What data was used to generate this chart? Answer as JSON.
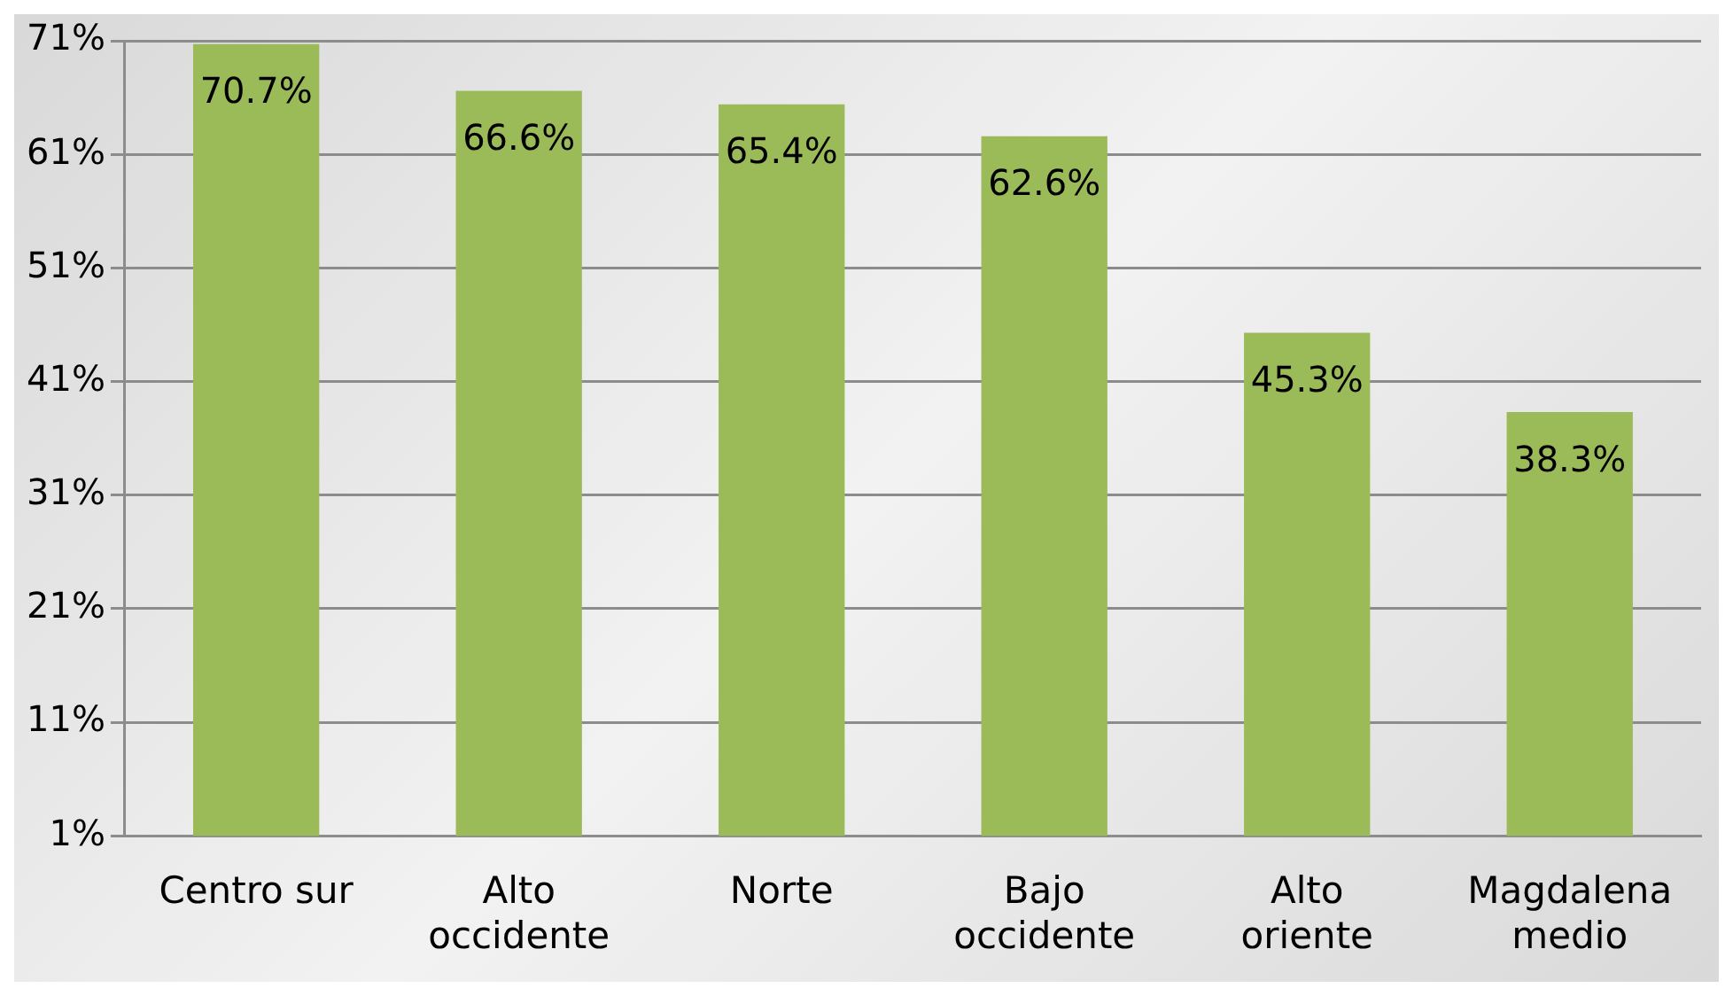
{
  "chart_data": {
    "type": "bar",
    "categories": [
      "Centro sur",
      "Alto occidente",
      "Norte",
      "Bajo occidente",
      "Alto oriente",
      "Magdalena medio"
    ],
    "values": [
      70.7,
      66.6,
      65.4,
      62.6,
      45.3,
      38.3
    ],
    "value_labels": [
      "70.7%",
      "66.6%",
      "65.4%",
      "62.6%",
      "45.3%",
      "38.3%"
    ],
    "color": "#9bbb59",
    "ylim": [
      1,
      71
    ],
    "yticks": [
      {
        "value": 1,
        "label": "1%"
      },
      {
        "value": 11,
        "label": "11%"
      },
      {
        "value": 21,
        "label": "21%"
      },
      {
        "value": 31,
        "label": "31%"
      },
      {
        "value": 41,
        "label": "41%"
      },
      {
        "value": 51,
        "label": "51%"
      },
      {
        "value": 61,
        "label": "61%"
      },
      {
        "value": 71,
        "label": "71%"
      }
    ],
    "grid": "y",
    "legend": false
  }
}
